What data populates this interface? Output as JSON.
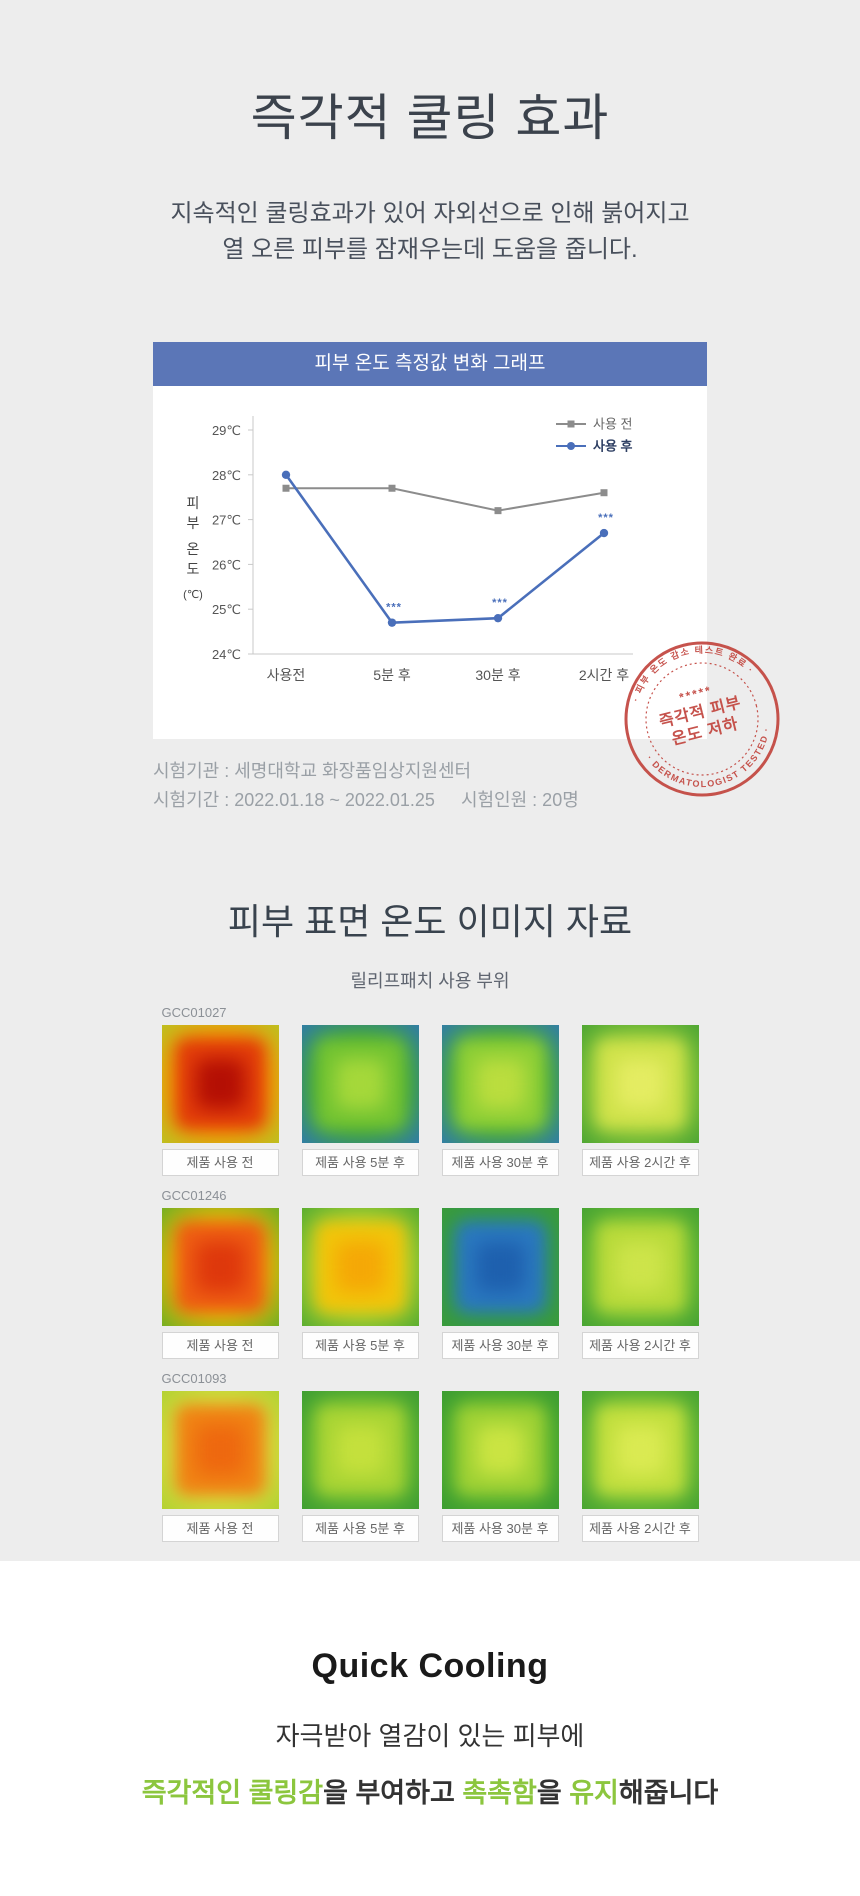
{
  "page": {
    "background": "#ededed",
    "accent_blue": "#5b76b7",
    "stamp_red": "#c2453e",
    "highlight_green": "#8cc63e"
  },
  "hero": {
    "title": "즉각적 쿨링 효과",
    "subtitle_line1": "지속적인 쿨링효과가 있어 자외선으로 인해  붉어지고",
    "subtitle_line2": "열 오른 피부를 잠재우는데 도움을 줍니다."
  },
  "chart_data": {
    "type": "line",
    "title": "피부 온도 측정값 변화 그래프",
    "categories": [
      "사용전",
      "5분 후",
      "30분 후",
      "2시간 후"
    ],
    "series": [
      {
        "name": "사용 전",
        "color": "#8c8c8c",
        "marker": "square",
        "bold": false,
        "values": [
          27.7,
          27.7,
          27.2,
          27.6
        ],
        "annotations": [
          "",
          "",
          "",
          ""
        ]
      },
      {
        "name": "사용 후",
        "color": "#4a6fba",
        "marker": "circle",
        "bold": true,
        "values": [
          28.0,
          24.7,
          24.8,
          26.7
        ],
        "annotations": [
          "",
          "***",
          "***",
          "***"
        ]
      }
    ],
    "ylabel": "피부 온도 (℃)",
    "ylabel_chars": [
      "피",
      "부",
      "온",
      "도",
      "(℃)"
    ],
    "yticks": [
      "29℃",
      "28℃",
      "27℃",
      "26℃",
      "25℃",
      "24℃"
    ],
    "ylim": [
      24,
      29
    ],
    "grid": false,
    "legend_position": "top-right"
  },
  "test_info": {
    "line1": "시험기관 : 세명대학교 화장품임상지원센터",
    "line2_left": "시험기간 : 2022.01.18 ~ 2022.01.25",
    "line2_right": "시험인원 : 20명"
  },
  "stamp": {
    "top_text": "· 피부 온도 감소 테스트 완료 ·",
    "stars": "*****",
    "line1": "즉각적 피부",
    "line2": "온도 저하",
    "bottom_text": "· DERMATOLOGIST TESTED ·",
    "color": "#c2453e"
  },
  "thermal": {
    "title": "피부 표면 온도 이미지 자료",
    "subtitle": "릴리프패치 사용 부위",
    "rows": [
      {
        "id": "GCC01027",
        "cells": [
          {
            "label": "제품 사용 전",
            "variant": "hot-red"
          },
          {
            "label": "제품 사용 5분 후",
            "variant": "green-blue-a"
          },
          {
            "label": "제품 사용 30분 후",
            "variant": "green-blue-b"
          },
          {
            "label": "제품 사용 2시간 후",
            "variant": "warm-green"
          }
        ]
      },
      {
        "id": "GCC01246",
        "cells": [
          {
            "label": "제품 사용 전",
            "variant": "hot-orange"
          },
          {
            "label": "제품 사용 5분 후",
            "variant": "warm-yellow"
          },
          {
            "label": "제품 사용 30분 후",
            "variant": "cold-blue"
          },
          {
            "label": "제품 사용 2시간 후",
            "variant": "green-mid"
          }
        ]
      },
      {
        "id": "GCC01093",
        "cells": [
          {
            "label": "제품 사용 전",
            "variant": "hot-orange-b"
          },
          {
            "label": "제품 사용 5분 후",
            "variant": "green-a"
          },
          {
            "label": "제품 사용 30분 후",
            "variant": "green-b"
          },
          {
            "label": "제품 사용 2시간 후",
            "variant": "green-c"
          }
        ]
      }
    ]
  },
  "footer": {
    "title": "Quick Cooling",
    "line1": "자극받아 열감이 있는 피부에",
    "line2_segments": [
      {
        "text": "즉각적인 쿨링감",
        "highlight": true
      },
      {
        "text": "을 부여하고 ",
        "highlight": false
      },
      {
        "text": "촉촉함",
        "highlight": true
      },
      {
        "text": "을 ",
        "highlight": false
      },
      {
        "text": "유지",
        "highlight": true
      },
      {
        "text": "해줍니다",
        "highlight": false
      }
    ],
    "highlight_color": "#8cc63e"
  }
}
